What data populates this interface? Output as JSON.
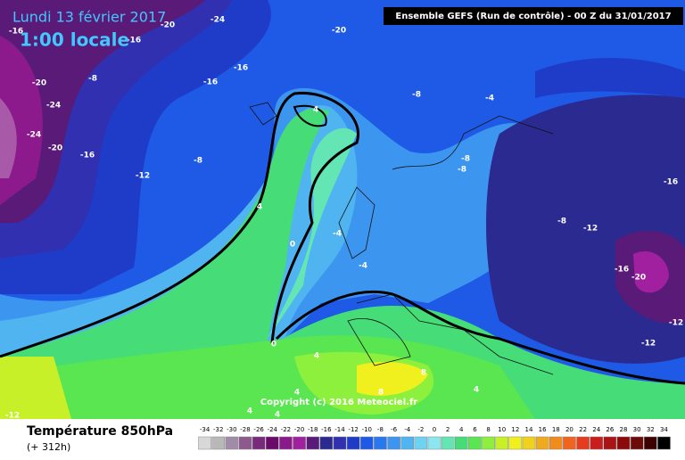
{
  "header": {
    "date": "Lundi 13 février 2017",
    "time": "1:00 locale",
    "run": "Ensemble GEFS  (Run de contrôle)  -  00 Z du 31/01/2017"
  },
  "footer": {
    "title": "Température 850hPa",
    "lead": "(+ 312h)",
    "copyright": "Copyright (c) 2016 Meteociel.fr"
  },
  "legend": {
    "ticks": [
      -34,
      -32,
      -30,
      -28,
      -26,
      -24,
      -22,
      -20,
      -18,
      -16,
      -14,
      -12,
      -10,
      -8,
      -6,
      -4,
      -2,
      0,
      2,
      4,
      6,
      8,
      10,
      12,
      14,
      16,
      18,
      20,
      22,
      24,
      26,
      28,
      30,
      32,
      34
    ],
    "colors": [
      "#d8d8d8",
      "#b8b8b8",
      "#a08ca8",
      "#8c5a8c",
      "#7a2a7a",
      "#6a0a6a",
      "#8a1a8a",
      "#a020a0",
      "#5a1a78",
      "#2a2a90",
      "#3030b0",
      "#1e3cc8",
      "#1e5ae6",
      "#2878f0",
      "#3c96f0",
      "#50b4f0",
      "#6ed2f0",
      "#8ce6f0",
      "#64e6b4",
      "#46dc78",
      "#5ae650",
      "#8cf03c",
      "#c8f028",
      "#f0f01e",
      "#f0d21e",
      "#f0aa1e",
      "#f08c1e",
      "#f0641e",
      "#e63c1e",
      "#c81e1e",
      "#aa1414",
      "#8c0a0a",
      "#6e0a0a",
      "#3c0000",
      "#000000"
    ]
  },
  "contour_labels": [
    "-16",
    "-20",
    "-24",
    "-16",
    "-20",
    "-16",
    "-16",
    "-8",
    "-20",
    "-24",
    "-24",
    "-20",
    "-16",
    "-8",
    "-12",
    "-8",
    "-4",
    "4",
    "-8",
    "-8",
    "-16",
    "4",
    "-8",
    "-12",
    "-4",
    "0",
    "-4",
    "-16",
    "-20",
    "-12",
    "-12",
    "0",
    "4",
    "8",
    "4",
    "8",
    "4",
    "4",
    "4",
    "-12"
  ]
}
